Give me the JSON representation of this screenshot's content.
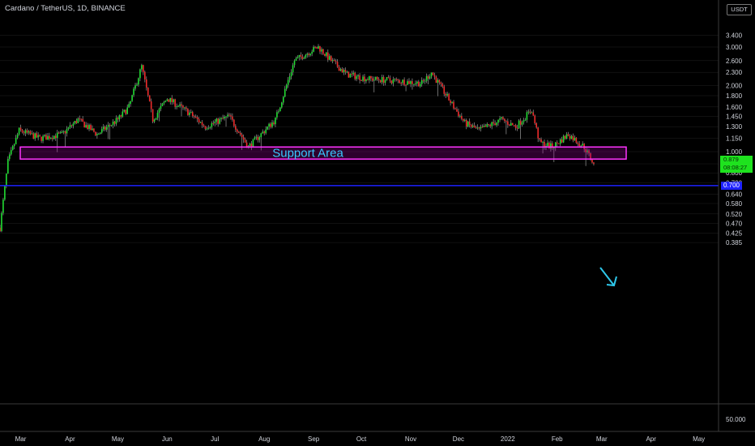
{
  "header": {
    "title": "Cardano / TetherUS, 1D, BINANCE",
    "currency_label": "USDT",
    "last_price": "0.879",
    "countdown": "08:08:27",
    "level_label": "0.700"
  },
  "annotation": {
    "support_label": "Support Area",
    "support_zone": [
      0.925,
      1.05
    ],
    "support_color": "#ff33ff",
    "horizontal_level": 0.7,
    "level_color": "#1e22ff",
    "arrow_color": "#2ec7ea"
  },
  "colors": {
    "up": "#22dd33",
    "down": "#ee2b2b",
    "grid": "#202020",
    "background": "#000000"
  },
  "chart_data": {
    "type": "candlestick",
    "title": "Cardano / TetherUS, 1D, BINANCE",
    "y_scale": "log",
    "ylim": [
      0.34,
      3.7
    ],
    "y_ticks": [
      "3.400",
      "3.000",
      "2.600",
      "2.300",
      "2.000",
      "1.800",
      "1.600",
      "1.450",
      "1.300",
      "1.150",
      "1.000",
      "0.880",
      "0.800",
      "0.720",
      "0.640",
      "0.580",
      "0.520",
      "0.470",
      "0.425",
      "0.385"
    ],
    "x_ticks": [
      "Mar",
      "Apr",
      "May",
      "Jun",
      "Jul",
      "Aug",
      "Sep",
      "Oct",
      "Nov",
      "Dec",
      "2022",
      "Feb",
      "Mar",
      "Apr",
      "May"
    ],
    "volume_tick": "50.000",
    "price_path": [
      [
        "2021-02-16",
        0.45
      ],
      [
        "2021-02-21",
        0.9
      ],
      [
        "2021-02-28",
        1.25
      ],
      [
        "2021-03-13",
        1.15
      ],
      [
        "2021-03-27",
        1.2
      ],
      [
        "2021-04-06",
        1.4
      ],
      [
        "2021-04-18",
        1.2
      ],
      [
        "2021-05-01",
        1.4
      ],
      [
        "2021-05-08",
        1.6
      ],
      [
        "2021-05-16",
        2.45
      ],
      [
        "2021-05-23",
        1.4
      ],
      [
        "2021-06-01",
        1.75
      ],
      [
        "2021-06-15",
        1.5
      ],
      [
        "2021-06-25",
        1.3
      ],
      [
        "2021-07-10",
        1.45
      ],
      [
        "2021-07-22",
        1.05
      ],
      [
        "2021-08-08",
        1.4
      ],
      [
        "2021-08-20",
        2.6
      ],
      [
        "2021-08-31",
        2.9
      ],
      [
        "2021-09-04",
        3.0
      ],
      [
        "2021-09-12",
        2.6
      ],
      [
        "2021-09-22",
        2.25
      ],
      [
        "2021-10-05",
        2.15
      ],
      [
        "2021-10-25",
        2.1
      ],
      [
        "2021-11-08",
        2.05
      ],
      [
        "2021-11-14",
        2.3
      ],
      [
        "2021-11-28",
        1.6
      ],
      [
        "2021-12-05",
        1.35
      ],
      [
        "2021-12-14",
        1.25
      ],
      [
        "2021-12-28",
        1.4
      ],
      [
        "2022-01-06",
        1.3
      ],
      [
        "2022-01-16",
        1.55
      ],
      [
        "2022-01-21",
        1.1
      ],
      [
        "2022-01-29",
        1.05
      ],
      [
        "2022-02-08",
        1.2
      ],
      [
        "2022-02-18",
        1.05
      ],
      [
        "2022-02-24",
        0.879
      ]
    ],
    "last_value": 0.879
  }
}
